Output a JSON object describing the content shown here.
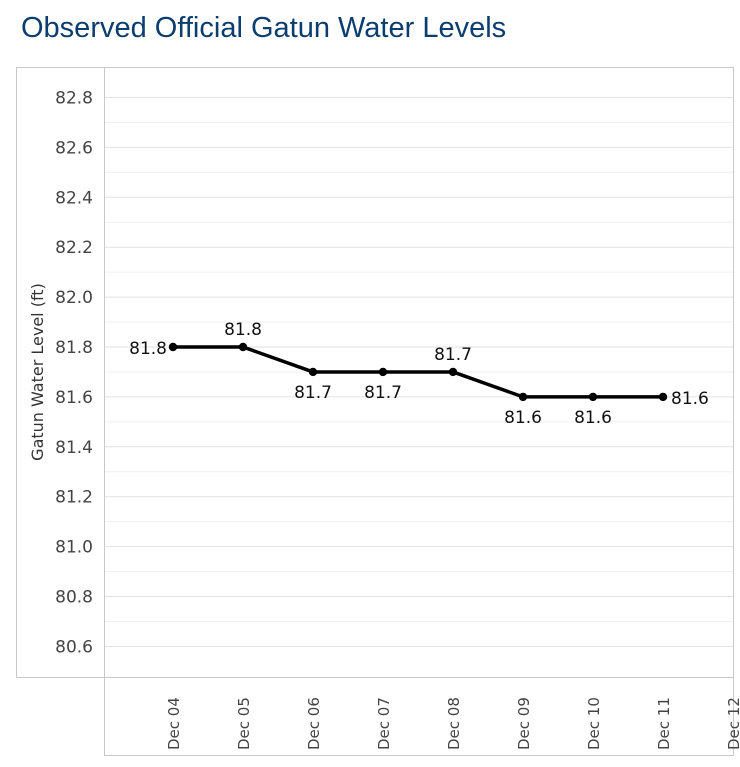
{
  "chart_data": {
    "type": "line",
    "title": "Observed Official Gatun Water Levels",
    "ylabel": "Gatun Water Level (ft)",
    "xlabel": "",
    "x_tick_labels": [
      "Dec 04",
      "Dec 05",
      "Dec 06",
      "Dec 07",
      "Dec 08",
      "Dec 09",
      "Dec 10",
      "Dec 11",
      "Dec 12"
    ],
    "y_tick_labels": [
      "82.8",
      "82.6",
      "82.4",
      "82.2",
      "82.0",
      "81.8",
      "81.6",
      "81.4",
      "81.2",
      "81.0",
      "80.8",
      "80.6"
    ],
    "ylim": [
      80.5,
      82.9
    ],
    "y_ticks": [
      82.8,
      82.6,
      82.4,
      82.2,
      82.0,
      81.8,
      81.6,
      81.4,
      81.2,
      81.0,
      80.8,
      80.6
    ],
    "grid": true,
    "series": [
      {
        "name": "Gatun Water Level",
        "color": "#000000",
        "x_index": [
          0,
          1,
          2,
          3,
          4,
          5,
          6,
          7
        ],
        "values": [
          81.8,
          81.8,
          81.7,
          81.7,
          81.7,
          81.6,
          81.6,
          81.6
        ],
        "labels": [
          "81.8",
          "81.8",
          "81.7",
          "81.7",
          "81.7",
          "81.6",
          "81.6",
          "81.6"
        ],
        "label_positions": [
          "left",
          "above",
          "below",
          "below",
          "above",
          "below",
          "below",
          "right"
        ]
      }
    ]
  }
}
